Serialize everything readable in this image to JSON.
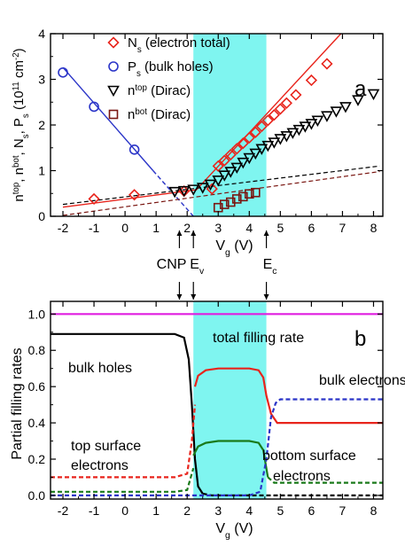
{
  "chart_data": [
    {
      "type": "scatter",
      "panel_label": "a",
      "xlabel": "V_g (V)",
      "ylabel": "n^top, n^bot, N_s, P_s (10^11 cm^-2)",
      "xlim": [
        -2.4,
        8.3
      ],
      "ylim": [
        0,
        4
      ],
      "xticks": [
        "-2",
        "-1",
        "0",
        "1",
        "2",
        "3",
        "4",
        "5",
        "6",
        "7",
        "8"
      ],
      "yticks": [
        "0",
        "1",
        "2",
        "3",
        "4"
      ],
      "legend_position": "top-right",
      "shaded_band": {
        "x0": 2.2,
        "x1": 4.55,
        "color": "#7ff5f0"
      },
      "series": [
        {
          "name": "N_s (electron total)",
          "marker": "diamond",
          "color": "#e8241c",
          "x": [
            -1.0,
            0.3,
            1.9,
            2.8,
            3.0,
            3.2,
            3.4,
            3.6,
            3.8,
            4.0,
            4.2,
            4.4,
            4.6,
            4.8,
            5.0,
            5.2,
            5.5,
            6.0,
            6.5
          ],
          "y": [
            0.38,
            0.47,
            0.55,
            0.6,
            1.1,
            1.22,
            1.35,
            1.48,
            1.6,
            1.72,
            1.84,
            1.97,
            2.1,
            2.22,
            2.35,
            2.48,
            2.66,
            2.98,
            3.34
          ],
          "fit_line": {
            "x": [
              -2.0,
              2.3,
              2.3,
              6.95
            ],
            "y": [
              0.2,
              0.58,
              0.58,
              4.0
            ]
          }
        },
        {
          "name": "P_s (bulk holes)",
          "marker": "circle",
          "color": "#2b35c8",
          "x": [
            -2.0,
            -1.0,
            0.3
          ],
          "y": [
            3.15,
            2.4,
            1.46
          ],
          "fit_line": {
            "x": [
              -2.0,
              0.9
            ],
            "y": [
              3.26,
              1.0
            ]
          },
          "dashed_extension": {
            "x": [
              0.9,
              2.2
            ],
            "y": [
              1.0,
              0.0
            ]
          }
        },
        {
          "name": "n^top (Dirac)",
          "marker": "triangle-down",
          "color": "#000000",
          "x": [
            1.6,
            1.9,
            2.2,
            2.5,
            2.75,
            3.0,
            3.2,
            3.4,
            3.6,
            3.8,
            4.0,
            4.2,
            4.4,
            4.6,
            4.8,
            5.0,
            5.2,
            5.4,
            5.6,
            5.8,
            6.0,
            6.2,
            6.5,
            6.8,
            7.1,
            7.5,
            8.0
          ],
          "y": [
            0.54,
            0.56,
            0.59,
            0.63,
            0.7,
            0.79,
            0.9,
            0.98,
            1.07,
            1.18,
            1.28,
            1.38,
            1.48,
            1.55,
            1.62,
            1.7,
            1.76,
            1.83,
            1.9,
            1.97,
            2.03,
            2.1,
            2.2,
            2.3,
            2.4,
            2.55,
            2.68
          ],
          "dashed_line": {
            "x": [
              -2.0,
              8.2
            ],
            "y": [
              0.26,
              1.1
            ]
          }
        },
        {
          "name": "n^bot (Dirac)",
          "marker": "square",
          "color": "#7a1712",
          "x": [
            3.0,
            3.2,
            3.4,
            3.6,
            3.8,
            4.0,
            4.2
          ],
          "y": [
            0.19,
            0.26,
            0.31,
            0.38,
            0.43,
            0.49,
            0.52
          ],
          "dashed_line": {
            "x": [
              -2.0,
              8.2
            ],
            "y": [
              0.02,
              0.98
            ]
          }
        }
      ],
      "annotations": [
        {
          "text": "CNP",
          "x": 1.75
        },
        {
          "text": "E_v",
          "x": 2.2
        },
        {
          "text": "E_c",
          "x": 4.55
        }
      ]
    },
    {
      "type": "line",
      "panel_label": "b",
      "xlabel": "V_g (V)",
      "ylabel": "Partial filling rates",
      "xlim": [
        -2.4,
        8.3
      ],
      "ylim": [
        -0.02,
        1.07
      ],
      "xticks": [
        "-2",
        "-1",
        "0",
        "1",
        "2",
        "3",
        "4",
        "5",
        "6",
        "7",
        "8"
      ],
      "yticks": [
        "0.0",
        "0.2",
        "0.4",
        "0.6",
        "0.8",
        "1.0"
      ],
      "shaded_band": {
        "x0": 2.2,
        "x1": 4.55,
        "color": "#7ff5f0"
      },
      "series": [
        {
          "name": "total filling rate",
          "color": "#e01ee0",
          "style": "solid",
          "x": [
            -2.4,
            8.3
          ],
          "y": [
            1.0,
            1.0
          ]
        },
        {
          "name": "bulk holes",
          "color": "#000000",
          "style": "solid",
          "x": [
            -2.4,
            1.6,
            1.9,
            2.05,
            2.15,
            2.25,
            2.35,
            2.5
          ],
          "y": [
            0.89,
            0.89,
            0.87,
            0.75,
            0.5,
            0.2,
            0.05,
            0.01
          ]
        },
        {
          "name": "bulk holes (tail)",
          "color": "#000000",
          "style": "dashed",
          "x": [
            2.5,
            2.8,
            3.2,
            4.0,
            8.3
          ],
          "y": [
            0.01,
            0.0,
            0.0,
            0.0,
            0.0
          ]
        },
        {
          "name": "top surface electrons",
          "color": "#e8241c",
          "style": "dashed",
          "x": [
            -2.4,
            1.6,
            2.0,
            2.15,
            2.25
          ],
          "y": [
            0.1,
            0.1,
            0.12,
            0.3,
            0.5
          ]
        },
        {
          "name": "top surface electrons (solid)",
          "color": "#e8241c",
          "style": "solid",
          "x": [
            2.25,
            2.35,
            2.6,
            3.0,
            3.5,
            4.0,
            4.3,
            4.45,
            4.55,
            4.7,
            4.9,
            8.3
          ],
          "y": [
            0.6,
            0.66,
            0.69,
            0.7,
            0.7,
            0.7,
            0.69,
            0.65,
            0.55,
            0.45,
            0.4,
            0.4
          ]
        },
        {
          "name": "bottom surface electrons",
          "color": "#1a7a1a",
          "style": "dashed",
          "x": [
            -2.4,
            1.6,
            2.0,
            2.2
          ],
          "y": [
            0.02,
            0.02,
            0.03,
            0.15
          ]
        },
        {
          "name": "bottom surface electrons (solid)",
          "color": "#1a7a1a",
          "style": "solid",
          "x": [
            2.2,
            2.35,
            2.6,
            3.0,
            4.0,
            4.3,
            4.45,
            4.6
          ],
          "y": [
            0.22,
            0.27,
            0.29,
            0.3,
            0.3,
            0.29,
            0.25,
            0.1
          ]
        },
        {
          "name": "bottom surface electrons (tail)",
          "color": "#1a7a1a",
          "style": "dashed",
          "x": [
            4.6,
            4.8,
            8.3
          ],
          "y": [
            0.1,
            0.07,
            0.07
          ]
        },
        {
          "name": "bulk electrons",
          "color": "#2b35c8",
          "style": "dashed",
          "x": [
            -2.4,
            2.2,
            4.0,
            4.35,
            4.55,
            4.7,
            4.85,
            5.0,
            8.3
          ],
          "y": [
            0.0,
            0.0,
            0.0,
            0.02,
            0.2,
            0.43,
            0.51,
            0.53,
            0.53
          ]
        }
      ],
      "labels": [
        {
          "text": "total filling rate",
          "color": "#e01ee0"
        },
        {
          "text": "bulk holes",
          "color": "#000000"
        },
        {
          "text": "bulk electrons",
          "color": "#2b35c8"
        },
        {
          "text": "top surface",
          "color": "#e8241c"
        },
        {
          "text": "electrons",
          "color": "#e8241c"
        },
        {
          "text": "bottom  surface",
          "color": "#1a7a1a"
        },
        {
          "text": "electrons",
          "color": "#1a7a1a"
        }
      ]
    }
  ]
}
